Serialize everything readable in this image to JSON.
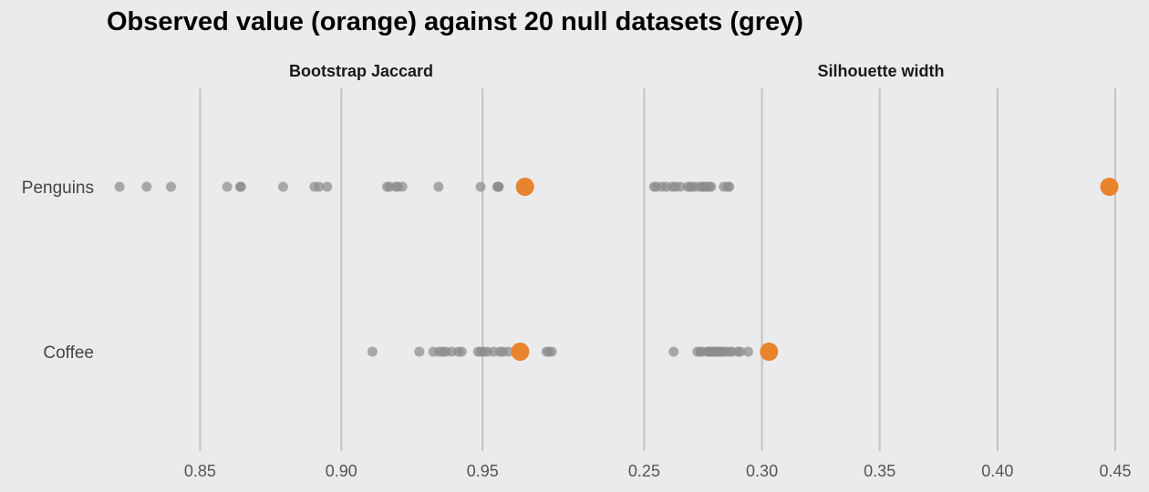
{
  "title": "Observed value (orange) against 20 null datasets (grey)",
  "colors": {
    "background": "#ebebed",
    "observed": "#e8842e",
    "null": "#8c8c8c",
    "grid": "#c4c4c6"
  },
  "chart_data": [
    {
      "type": "scatter",
      "panel_title": "Bootstrap Jaccard",
      "categories": [
        "Penguins",
        "Coffee"
      ],
      "xlim": [
        0.8205,
        0.9935
      ],
      "xticks": [
        0.85,
        0.9,
        0.95
      ],
      "xtick_labels": [
        "0.85",
        "0.90",
        "0.95"
      ],
      "grid": true,
      "series": [
        {
          "name": "null",
          "points": {
            "Penguins": [
              0.8215,
              0.8311,
              0.8397,
              0.8596,
              0.8642,
              0.8645,
              0.8794,
              0.8905,
              0.8921,
              0.895,
              0.9162,
              0.9171,
              0.9193,
              0.92,
              0.9216,
              0.9344,
              0.9493,
              0.9552,
              0.9556,
              0.9557
            ],
            "Coffee": [
              0.911,
              0.9276,
              0.9326,
              0.9347,
              0.9359,
              0.937,
              0.9391,
              0.9414,
              0.9426,
              0.9484,
              0.9494,
              0.9505,
              0.9517,
              0.9539,
              0.9561,
              0.9572,
              0.9591,
              0.9726,
              0.9735,
              0.9745
            ]
          }
        },
        {
          "name": "observed",
          "points": {
            "Penguins": [
              0.965
            ],
            "Coffee": [
              0.9633
            ]
          }
        }
      ]
    },
    {
      "type": "scatter",
      "panel_title": "Silhouette width",
      "categories": [
        "Penguins",
        "Coffee"
      ],
      "xlim": [
        0.2475,
        0.4535
      ],
      "xticks": [
        0.25,
        0.3,
        0.35,
        0.4,
        0.45
      ],
      "xtick_labels": [
        "0.25",
        "0.30",
        "0.35",
        "0.40",
        "0.45"
      ],
      "grid": true,
      "series": [
        {
          "name": "null",
          "points": {
            "Penguins": [
              0.2542,
              0.2551,
              0.2575,
              0.2594,
              0.262,
              0.2633,
              0.2653,
              0.2685,
              0.2696,
              0.2718,
              0.2747,
              0.2755,
              0.2765,
              0.2775,
              0.2784,
              0.2838,
              0.2855,
              0.2861,
              0.2702,
              0.274
            ],
            "Coffee": [
              0.2625,
              0.2726,
              0.2739,
              0.2745,
              0.2768,
              0.2773,
              0.2782,
              0.2788,
              0.28,
              0.2808,
              0.2818,
              0.2827,
              0.2846,
              0.2864,
              0.2872,
              0.2898,
              0.2908,
              0.2941,
              0.2795,
              0.2835
            ]
          }
        },
        {
          "name": "observed",
          "points": {
            "Penguins": [
              0.4475
            ],
            "Coffee": [
              0.303
            ]
          }
        }
      ]
    }
  ]
}
